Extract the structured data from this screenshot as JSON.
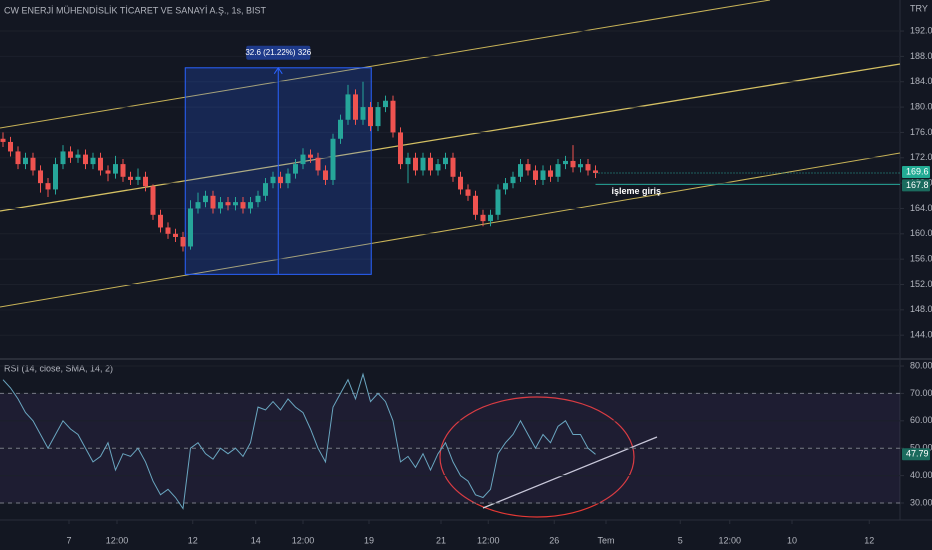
{
  "chart_data": [
    {
      "type": "candlestick",
      "title": "CW ENERJİ MÜHENDİSLİK TİCARET VE SANAYİ A.Ş., 1s, BIST",
      "currency": "TRY",
      "up_color": "#26a69a",
      "down_color": "#ef5350",
      "xlim": [
        -0.4,
        119.6
      ],
      "ylim": [
        140.4,
        196.9
      ],
      "yticks": [
        {
          "value": 144,
          "label": "144.0"
        },
        {
          "value": 148,
          "label": "148.0"
        },
        {
          "value": 152,
          "label": "152.0"
        },
        {
          "value": 156,
          "label": "156.0"
        },
        {
          "value": 160,
          "label": "160.0"
        },
        {
          "value": 164,
          "label": "164.0"
        },
        {
          "value": 168,
          "label": "168.0"
        },
        {
          "value": 172,
          "label": "172.0"
        },
        {
          "value": 176,
          "label": "176.0"
        },
        {
          "value": 180,
          "label": "180.0"
        },
        {
          "value": 184,
          "label": "184.0"
        },
        {
          "value": 188,
          "label": "188.0"
        },
        {
          "value": 192,
          "label": "192.0"
        }
      ],
      "series": {
        "open": [
          175,
          174.5,
          173,
          171,
          172,
          170,
          168,
          167,
          171,
          173,
          172,
          172.5,
          171,
          172,
          170,
          169.5,
          171,
          169,
          168.5,
          169,
          167.5,
          163,
          161,
          160,
          159.5,
          158,
          164,
          165,
          166,
          164,
          165,
          164.5,
          165,
          164,
          165,
          166,
          168,
          169,
          168,
          169.5,
          171,
          172.5,
          172,
          170,
          168.5,
          175,
          178,
          182,
          178,
          180,
          177,
          180,
          181,
          176,
          171,
          172,
          170,
          172,
          170,
          171,
          172,
          169,
          167,
          166,
          163,
          162,
          163,
          167,
          168,
          169,
          171,
          170,
          168.5,
          170,
          169,
          171,
          171.5,
          170.5,
          171,
          170
        ],
        "high": [
          176,
          175.3,
          173.8,
          172.8,
          172.8,
          170.8,
          168.8,
          172,
          174,
          173.8,
          173.3,
          173.3,
          172.8,
          172.8,
          170.8,
          172.3,
          171.8,
          169.8,
          170.3,
          169.8,
          167.8,
          163.8,
          161.8,
          160.8,
          160.3,
          165.3,
          166.5,
          166.8,
          166.8,
          165.8,
          165.8,
          165.8,
          165.8,
          165.8,
          166.8,
          168.8,
          169.8,
          169.8,
          170.3,
          171.8,
          173.5,
          173.3,
          172.8,
          170.8,
          175.8,
          178.8,
          183.5,
          182.8,
          184,
          180.8,
          180.8,
          181.8,
          181.8,
          176.8,
          172.8,
          172.8,
          172.8,
          172.8,
          171.8,
          172.8,
          172.8,
          169.8,
          167.8,
          166.8,
          163.8,
          163.8,
          167.8,
          168.8,
          169.8,
          171.8,
          171.8,
          170.8,
          170.8,
          170.8,
          171.8,
          172.3,
          174,
          171.8,
          171.8,
          170.8
        ],
        "low": [
          173.7,
          172.2,
          170.2,
          170.2,
          169.2,
          166.5,
          165.8,
          166.2,
          170.2,
          171.2,
          171.2,
          170.2,
          170.2,
          169.2,
          168.3,
          168.7,
          168.2,
          167.7,
          167.7,
          166.7,
          162.2,
          160.2,
          159.2,
          158.7,
          157.2,
          157.5,
          163.2,
          164.2,
          163.2,
          163.2,
          163.7,
          163.7,
          163.2,
          163.2,
          164.2,
          165.2,
          167.2,
          167.2,
          167.2,
          168.7,
          170.2,
          171.2,
          169.2,
          167.7,
          167.7,
          174.2,
          177.2,
          177.2,
          177.2,
          176.2,
          176.2,
          179.2,
          175.2,
          170.2,
          168,
          169.2,
          169.2,
          169.2,
          169.2,
          170.2,
          168.2,
          166.2,
          165.2,
          162.2,
          161.2,
          161.2,
          162.2,
          166.2,
          167.2,
          168.2,
          169.2,
          167.7,
          167.7,
          168.2,
          168.2,
          170.2,
          169.7,
          169.7,
          169.2,
          168.8
        ],
        "close": [
          174.5,
          173,
          171,
          172,
          170,
          168,
          167,
          171,
          173,
          172,
          172.5,
          171,
          172,
          170,
          169.5,
          171,
          169,
          168.5,
          169,
          167.5,
          163,
          161,
          160,
          159.5,
          158,
          164,
          165,
          166,
          164,
          165,
          164.5,
          165,
          164,
          165,
          166,
          168,
          169,
          168,
          169.5,
          171,
          172.5,
          172,
          170,
          168.5,
          175,
          178,
          182,
          178,
          180,
          177,
          180,
          181,
          176,
          171,
          172,
          170,
          172,
          170,
          171,
          172,
          169,
          167,
          166,
          163,
          162,
          163,
          167,
          168,
          169,
          171,
          170,
          168.5,
          170,
          169,
          171,
          171.5,
          170.5,
          171,
          170,
          169.6
        ]
      },
      "last_price": 169.6,
      "hline": {
        "value": 167.8,
        "text": "işleme giriş"
      },
      "measure": {
        "label": "32.6 (21.22%) 326",
        "low": 153.6,
        "high": 186.2,
        "x": [
          24.3,
          49.1
        ]
      }
    },
    {
      "type": "line",
      "title": "RSI (14, close, SMA, 14, 2)",
      "color": "#6aa6c0",
      "xlim": [
        -0.4,
        119.6
      ],
      "ylim": [
        23.8,
        82.2
      ],
      "yticks": [
        {
          "value": 30,
          "label": "30.00"
        },
        {
          "value": 40,
          "label": "40.00"
        },
        {
          "value": 50,
          "label": "50.00"
        },
        {
          "value": 60,
          "label": "60.00"
        },
        {
          "value": 70,
          "label": "70.00"
        },
        {
          "value": 80,
          "label": "80.00"
        }
      ],
      "bands": [
        30,
        50,
        70
      ],
      "values": [
        75,
        72,
        68,
        63,
        60,
        55,
        50,
        55,
        60,
        57,
        55,
        50,
        45,
        47,
        52,
        42,
        48,
        47,
        50,
        45,
        38,
        33,
        35,
        32,
        28,
        50,
        52,
        48,
        46,
        50,
        48,
        50,
        47,
        52,
        65,
        64,
        67,
        64,
        68,
        65,
        63,
        57,
        50,
        45,
        65,
        70,
        75,
        68,
        77,
        67,
        70,
        67,
        60,
        45,
        47,
        43,
        48,
        42,
        48,
        52,
        45,
        40,
        38,
        33,
        32,
        35,
        48,
        52,
        55,
        60,
        55,
        50,
        55,
        52,
        58,
        60,
        55,
        55,
        50,
        47.79
      ],
      "xticks": [
        {
          "value": 8.8,
          "label": "7"
        },
        {
          "value": 15.2,
          "label": "12:00"
        },
        {
          "value": 25.3,
          "label": "12"
        },
        {
          "value": 33.7,
          "label": "14"
        },
        {
          "value": 40,
          "label": "12:00"
        },
        {
          "value": 48.8,
          "label": "19"
        },
        {
          "value": 58.4,
          "label": "21"
        },
        {
          "value": 64.7,
          "label": "12:00"
        },
        {
          "value": 73.5,
          "label": "26"
        },
        {
          "value": 80.4,
          "label": "Tem"
        },
        {
          "value": 90.3,
          "label": "5"
        },
        {
          "value": 96.9,
          "label": "12:00"
        },
        {
          "value": 105.2,
          "label": "10"
        },
        {
          "value": 115.5,
          "label": "12"
        }
      ]
    }
  ]
}
